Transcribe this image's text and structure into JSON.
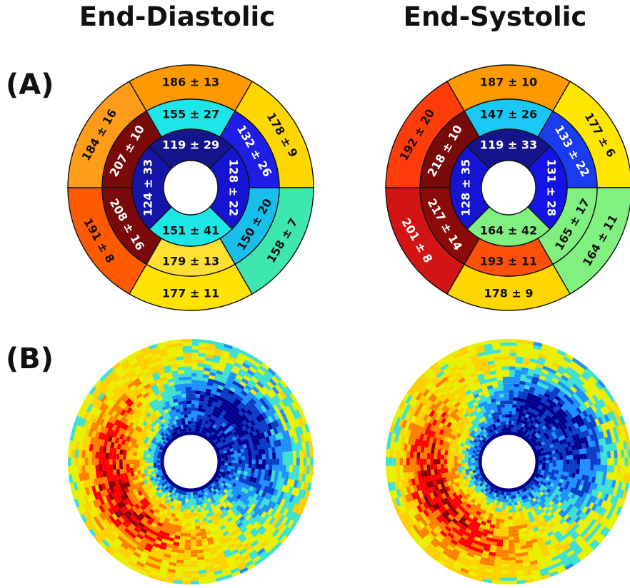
{
  "titles": {
    "left": "End-Diastolic",
    "right": "End-Systolic"
  },
  "panel_labels": {
    "a": "(A)",
    "b": "(B)"
  },
  "plus_minus": "±",
  "bullseyes": [
    {
      "name": "end-diastolic",
      "segments": [
        {
          "ring": "outer",
          "mean": "186",
          "sd": "13",
          "color": "#FF9900"
        },
        {
          "ring": "outer",
          "mean": "178",
          "sd": "9",
          "color": "#FFD700"
        },
        {
          "ring": "outer",
          "mean": "158",
          "sd": "7",
          "color": "#40E6B0"
        },
        {
          "ring": "outer",
          "mean": "177",
          "sd": "11",
          "color": "#FFE300"
        },
        {
          "ring": "outer",
          "mean": "191",
          "sd": "8",
          "color": "#FF5A00"
        },
        {
          "ring": "outer",
          "mean": "184",
          "sd": "16",
          "color": "#FF9D1A"
        },
        {
          "ring": "mid",
          "mean": "155",
          "sd": "27",
          "color": "#1EE6E6"
        },
        {
          "ring": "mid",
          "mean": "132",
          "sd": "26",
          "color": "#1E1EE6"
        },
        {
          "ring": "mid",
          "mean": "150",
          "sd": "20",
          "color": "#19BFEB"
        },
        {
          "ring": "mid",
          "mean": "179",
          "sd": "13",
          "color": "#FFE033"
        },
        {
          "ring": "mid",
          "mean": "208",
          "sd": "16",
          "color": "#7A0A0A"
        },
        {
          "ring": "mid",
          "mean": "207",
          "sd": "10",
          "color": "#7A0A0A"
        },
        {
          "ring": "inner",
          "mean": "119",
          "sd": "29",
          "color": "#14148C"
        },
        {
          "ring": "inner",
          "mean": "128",
          "sd": "22",
          "color": "#1414D2"
        },
        {
          "ring": "inner",
          "mean": "151",
          "sd": "41",
          "color": "#1EE6E6"
        },
        {
          "ring": "inner",
          "mean": "124",
          "sd": "33",
          "color": "#1414A8"
        }
      ]
    },
    {
      "name": "end-systolic",
      "segments": [
        {
          "ring": "outer",
          "mean": "187",
          "sd": "10",
          "color": "#FF9900"
        },
        {
          "ring": "outer",
          "mean": "177",
          "sd": "6",
          "color": "#FFE600"
        },
        {
          "ring": "outer",
          "mean": "164",
          "sd": "11",
          "color": "#80F080"
        },
        {
          "ring": "outer",
          "mean": "178",
          "sd": "9",
          "color": "#FFD700"
        },
        {
          "ring": "outer",
          "mean": "201",
          "sd": "8",
          "color": "#D21414"
        },
        {
          "ring": "outer",
          "mean": "192",
          "sd": "20",
          "color": "#FF3C0A"
        },
        {
          "ring": "mid",
          "mean": "147",
          "sd": "26",
          "color": "#19C8F5"
        },
        {
          "ring": "mid",
          "mean": "133",
          "sd": "22",
          "color": "#1A3CF0"
        },
        {
          "ring": "mid",
          "mean": "165",
          "sd": "17",
          "color": "#80F080"
        },
        {
          "ring": "mid",
          "mean": "193",
          "sd": "11",
          "color": "#FF500A"
        },
        {
          "ring": "mid",
          "mean": "217",
          "sd": "14",
          "color": "#8C0A0A"
        },
        {
          "ring": "mid",
          "mean": "218",
          "sd": "10",
          "color": "#780A0A"
        },
        {
          "ring": "inner",
          "mean": "119",
          "sd": "33",
          "color": "#14148C"
        },
        {
          "ring": "inner",
          "mean": "131",
          "sd": "28",
          "color": "#1414E6"
        },
        {
          "ring": "inner",
          "mean": "164",
          "sd": "42",
          "color": "#80F080"
        },
        {
          "ring": "inner",
          "mean": "128",
          "sd": "35",
          "color": "#1414D2"
        }
      ]
    }
  ],
  "heatmaps": [
    {
      "name": "end-diastolic-map",
      "colors": [
        "#8B0000",
        "#FF0000",
        "#FF8000",
        "#FFD000",
        "#E8F000",
        "#40E0D0",
        "#1E90FF",
        "#0A3CC8",
        "#00008B"
      ]
    },
    {
      "name": "end-systolic-map",
      "colors": [
        "#8B0000",
        "#FF0000",
        "#FF8000",
        "#FFD000",
        "#E8F000",
        "#40E0D0",
        "#1E90FF",
        "#0A3CC8",
        "#00008B"
      ]
    }
  ]
}
